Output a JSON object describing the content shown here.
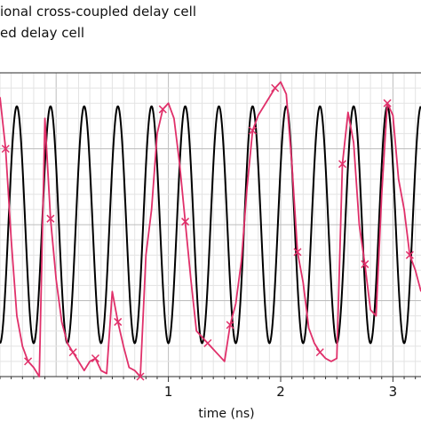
{
  "legend": [
    {
      "label": "ional cross-coupled delay cell",
      "color": "#000000"
    },
    {
      "label": "ed delay cell",
      "color": "#e0306a"
    }
  ],
  "chart_data": {
    "type": "line",
    "xlabel": "time (ns)",
    "xlim": [
      -0.5,
      3.25
    ],
    "x_ticks": [
      1,
      2,
      3
    ],
    "ylim": [
      0,
      1
    ],
    "grid": true,
    "series": [
      {
        "color": "#000000",
        "kind": "sine",
        "period_ns": 0.3,
        "first_peak_ns": -0.05,
        "amplitude": 0.39,
        "center": 0.5
      },
      {
        "color": "#e0306a",
        "marker": "x",
        "x": [
          -0.5,
          -0.45,
          -0.4,
          -0.35,
          -0.3,
          -0.25,
          -0.2,
          -0.15,
          -0.1,
          -0.05,
          0.0,
          0.05,
          0.1,
          0.15,
          0.2,
          0.25,
          0.3,
          0.35,
          0.4,
          0.45,
          0.5,
          0.55,
          0.6,
          0.65,
          0.7,
          0.75,
          0.8,
          0.85,
          0.9,
          0.95,
          1.0,
          1.05,
          1.1,
          1.15,
          1.2,
          1.25,
          1.3,
          1.35,
          1.4,
          1.45,
          1.5,
          1.55,
          1.6,
          1.65,
          1.7,
          1.75,
          1.8,
          1.85,
          1.9,
          1.95,
          2.0,
          2.05,
          2.1,
          2.15,
          2.2,
          2.25,
          2.3,
          2.35,
          2.4,
          2.45,
          2.5,
          2.55,
          2.6,
          2.65,
          2.7,
          2.75,
          2.8,
          2.85,
          2.9,
          2.95,
          3.0,
          3.05,
          3.1,
          3.15,
          3.2,
          3.25
        ],
        "y": [
          0.92,
          0.75,
          0.45,
          0.2,
          0.1,
          0.05,
          0.03,
          0.0,
          0.85,
          0.52,
          0.32,
          0.18,
          0.11,
          0.08,
          0.05,
          0.02,
          0.05,
          0.06,
          0.02,
          0.01,
          0.28,
          0.18,
          0.1,
          0.03,
          0.02,
          0.0,
          0.4,
          0.55,
          0.8,
          0.88,
          0.9,
          0.85,
          0.7,
          0.51,
          0.32,
          0.15,
          0.13,
          0.11,
          0.09,
          0.07,
          0.05,
          0.17,
          0.24,
          0.38,
          0.62,
          0.81,
          0.86,
          0.89,
          0.92,
          0.95,
          0.97,
          0.93,
          0.7,
          0.41,
          0.31,
          0.16,
          0.11,
          0.08,
          0.06,
          0.05,
          0.06,
          0.7,
          0.87,
          0.77,
          0.5,
          0.37,
          0.22,
          0.2,
          0.6,
          0.9,
          0.86,
          0.65,
          0.55,
          0.4,
          0.35,
          0.28
        ]
      }
    ]
  }
}
